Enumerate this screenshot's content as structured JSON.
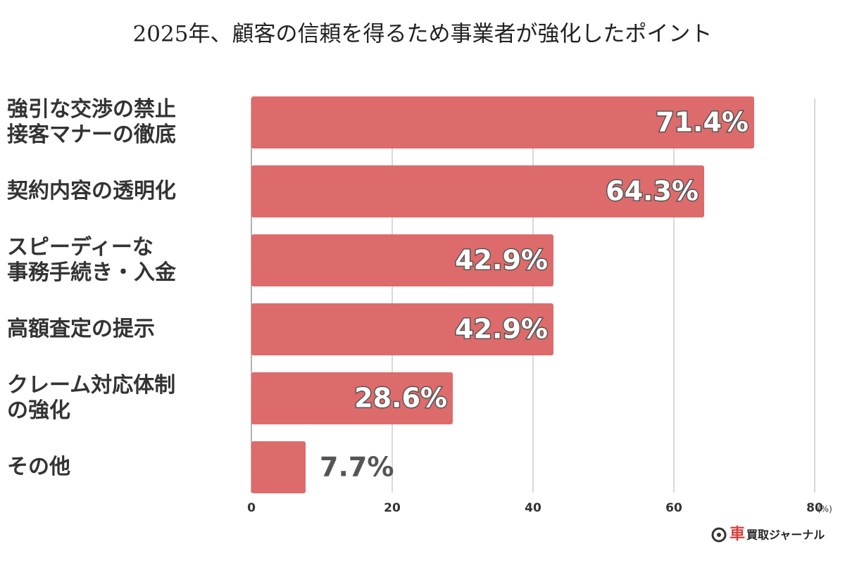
{
  "chart_data": {
    "type": "bar",
    "orientation": "horizontal",
    "title": "2025年、顧客の信頼を得るため事業者が強化したポイント",
    "categories": [
      "強引な交渉の禁止\n接客マナーの徹底",
      "契約内容の透明化",
      "スピーディーな\n事務手続き・入金",
      "高額査定の提示",
      "クレーム対応体制\nの強化",
      "その他"
    ],
    "values": [
      71.4,
      64.3,
      42.9,
      42.9,
      28.6,
      7.7
    ],
    "value_labels": [
      "71.4%",
      "64.3%",
      "42.9%",
      "42.9%",
      "28.6%",
      "7.7%"
    ],
    "color": "#de6b6b",
    "xlim": [
      0,
      80
    ],
    "xticks": [
      0,
      20,
      40,
      60,
      80
    ],
    "x_unit": "(%)",
    "grid": true,
    "logo_mark": "車",
    "logo_text": "買取ジャーナル"
  }
}
